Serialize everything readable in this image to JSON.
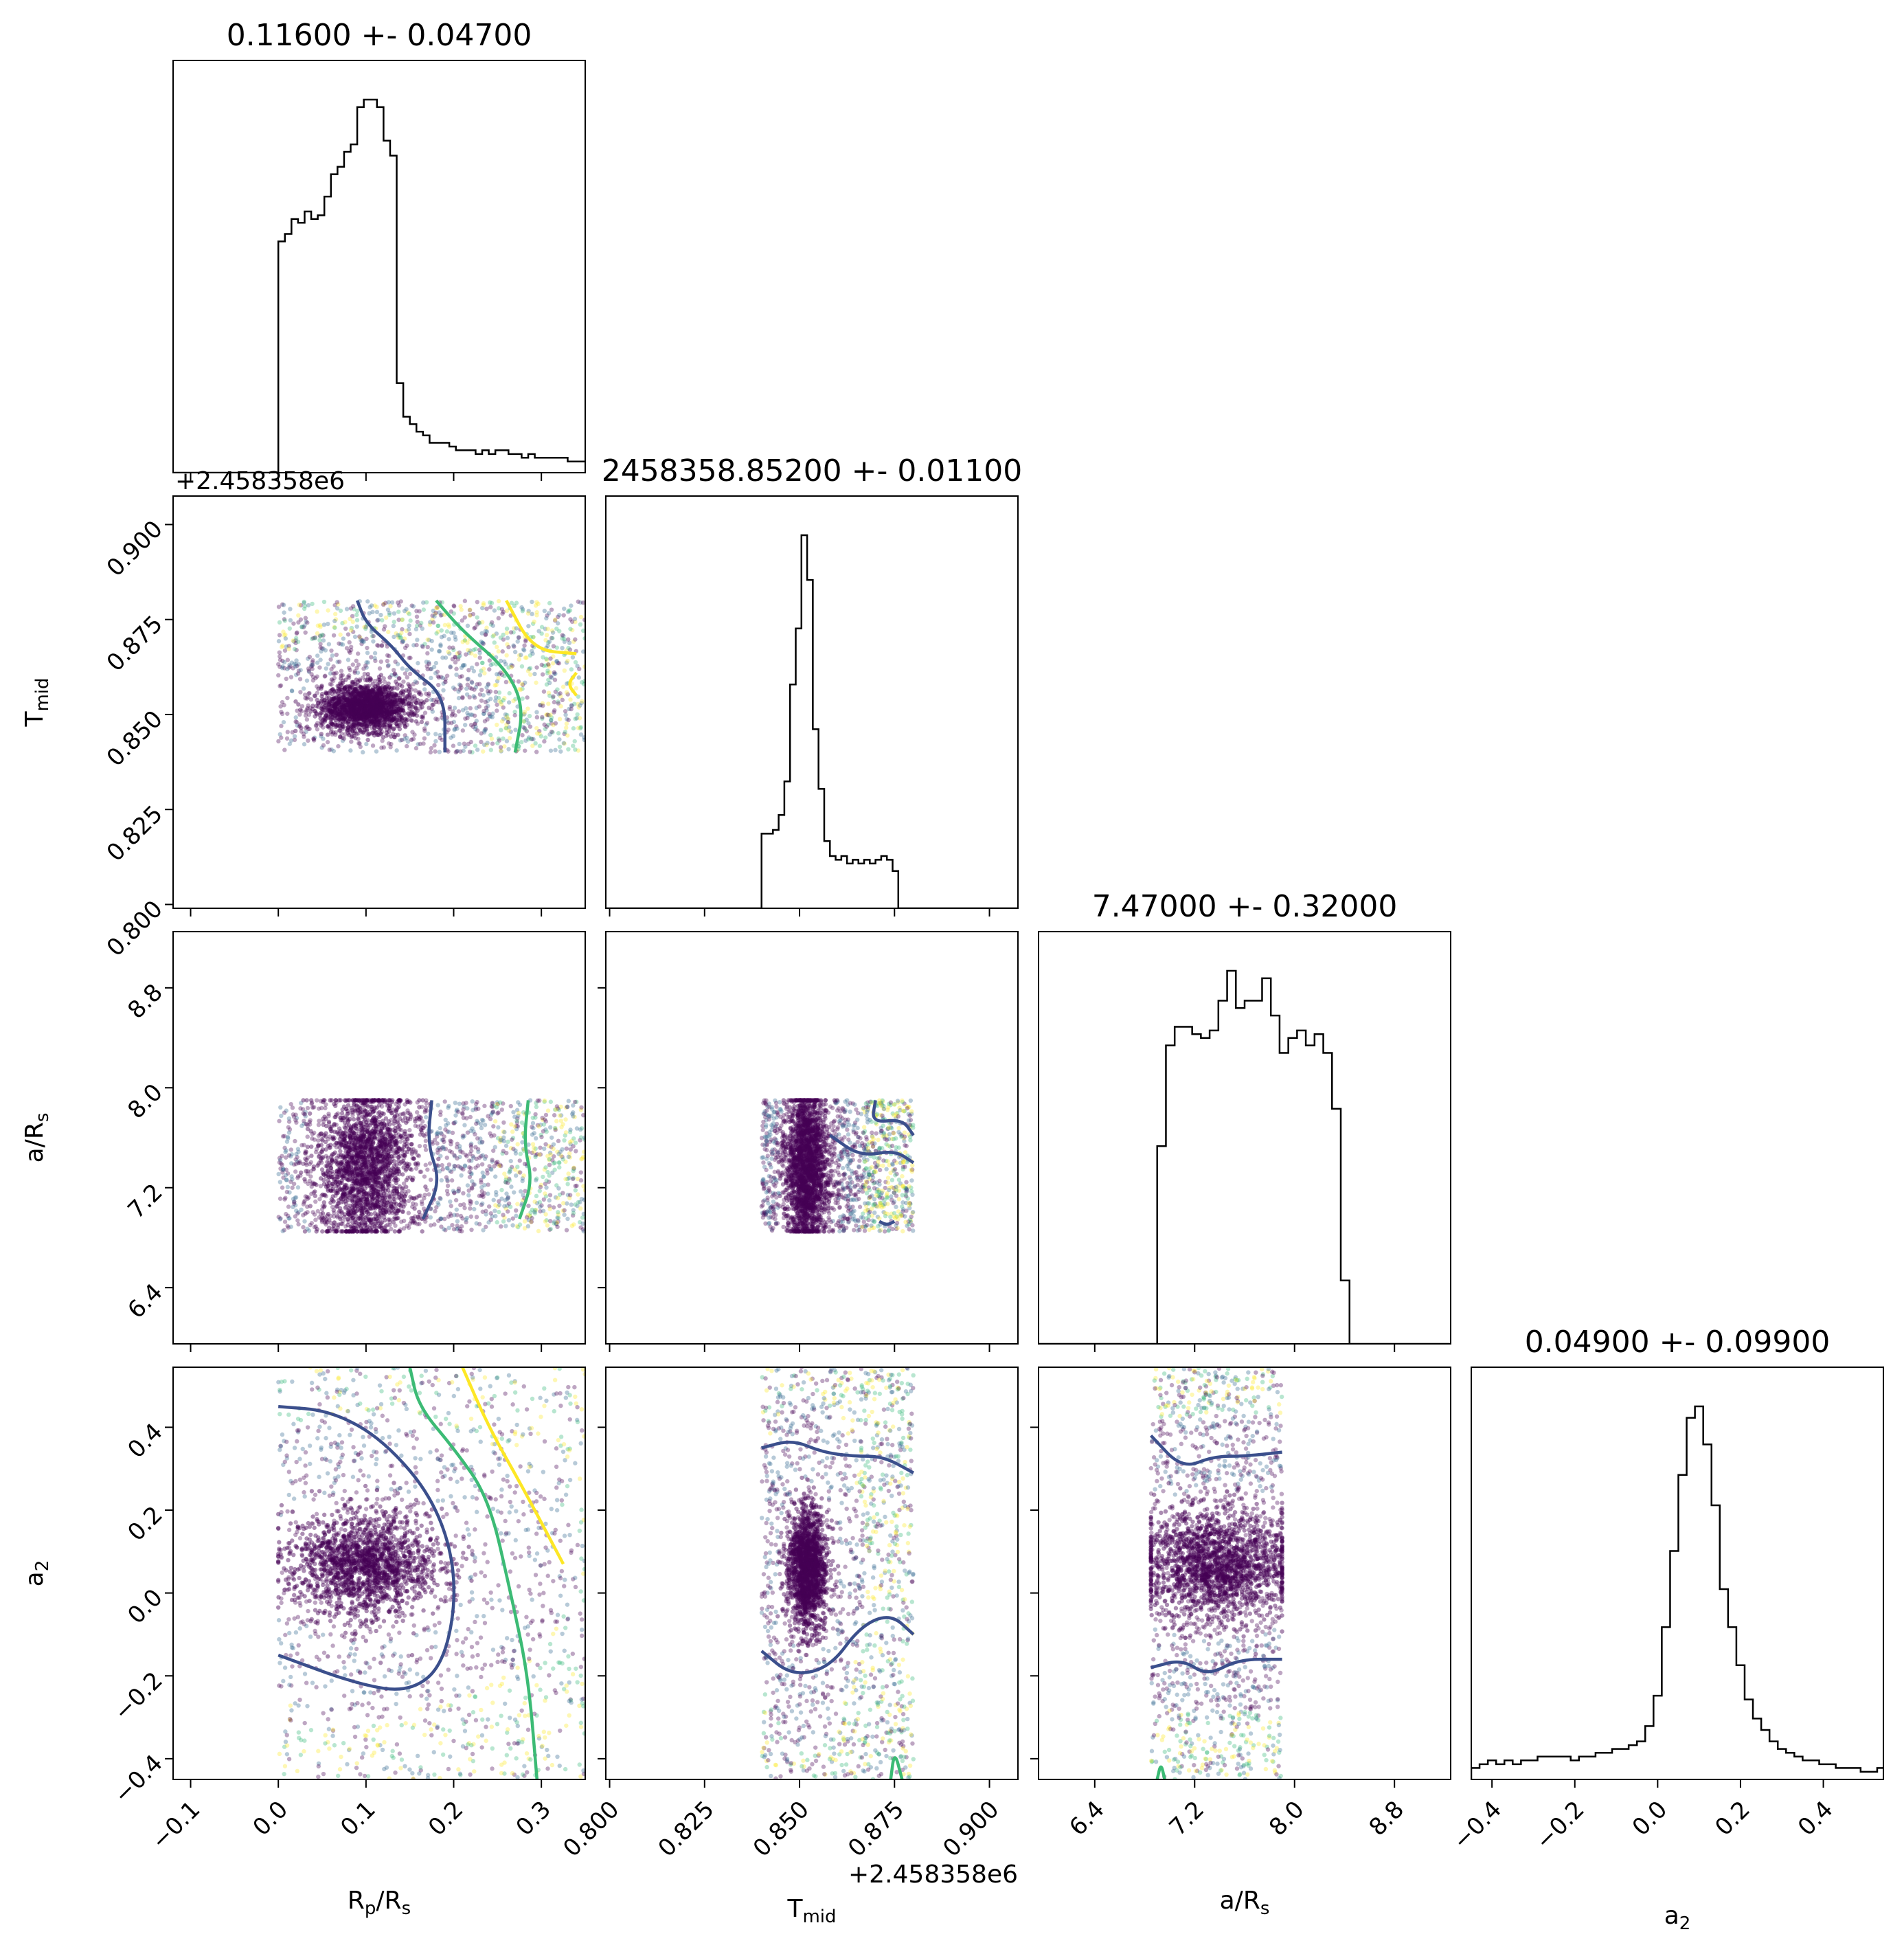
{
  "chart_data": {
    "type": "corner",
    "parameters": [
      {
        "key": "rp",
        "label": "R",
        "label_sub": "p",
        "label_suffix": "/R",
        "label_suffix_sub": "s",
        "range": [
          -0.12,
          0.35
        ],
        "ticks": [
          -0.1,
          0.0,
          0.1,
          0.2,
          0.3
        ],
        "tick_labels": [
          "−0.1",
          "0.0",
          "0.1",
          "0.2",
          "0.3"
        ],
        "title": "0.11600 +- 0.04700",
        "histogram": {
          "bin_start": 0.0,
          "bin_width": 0.0075,
          "counts": [
            62,
            64,
            68,
            67,
            70,
            68,
            69,
            74,
            80,
            82,
            86,
            88,
            98,
            100,
            100,
            98,
            89,
            85,
            24,
            15,
            13,
            11,
            10,
            8,
            8,
            8,
            7,
            6,
            6,
            6,
            5,
            6,
            5,
            6,
            6,
            5,
            5,
            4,
            5,
            4,
            4,
            4,
            4,
            4,
            3,
            3,
            3
          ]
        }
      },
      {
        "key": "tmid",
        "label": "T",
        "label_sub": "mid",
        "label_suffix": "",
        "label_suffix_sub": "",
        "range": [
          0.799,
          0.9075
        ],
        "ticks": [
          0.8,
          0.825,
          0.85,
          0.875,
          0.9
        ],
        "tick_labels": [
          "0.800",
          "0.825",
          "0.850",
          "0.875",
          "0.900"
        ],
        "offset_label": "+2.458358e6",
        "title": "2458358.85200 +- 0.01100",
        "histogram": {
          "bin_start": 0.84,
          "bin_width": 0.0015,
          "counts": [
            20,
            20,
            21,
            25,
            34,
            60,
            75,
            100,
            88,
            48,
            32,
            18,
            14,
            13,
            14,
            12,
            13,
            12,
            13,
            12,
            13,
            14,
            13,
            10,
            0
          ]
        }
      },
      {
        "key": "ars",
        "label": "a/R",
        "label_sub": "s",
        "label_suffix": "",
        "label_suffix_sub": "",
        "range": [
          5.95,
          9.25
        ],
        "ticks": [
          6.4,
          7.2,
          8.0,
          8.8
        ],
        "tick_labels": [
          "6.4",
          "7.2",
          "8.0",
          "8.8"
        ],
        "title": "7.47000 +- 0.32000",
        "histogram": {
          "bin_start": 6.9,
          "bin_width": 0.07,
          "counts": [
            53,
            80,
            85,
            85,
            83,
            82,
            84,
            92,
            100,
            90,
            92,
            92,
            98,
            88,
            78,
            82,
            84,
            80,
            83,
            78,
            63,
            17
          ]
        }
      },
      {
        "key": "a2",
        "label": "a",
        "label_sub": "2",
        "label_suffix": "",
        "label_suffix_sub": "",
        "range": [
          -0.45,
          0.545
        ],
        "ticks": [
          -0.4,
          -0.2,
          0.0,
          0.2,
          0.4
        ],
        "tick_labels": [
          "−0.4",
          "−0.2",
          "0.0",
          "0.2",
          "0.4"
        ],
        "title": "0.04900 +- 0.09900",
        "histogram": {
          "bin_start": -0.45,
          "bin_width": 0.02,
          "counts": [
            3,
            4,
            5,
            4,
            5,
            4,
            5,
            5,
            6,
            6,
            6,
            6,
            5,
            6,
            6,
            7,
            7,
            8,
            8,
            9,
            10,
            14,
            22,
            40,
            60,
            80,
            95,
            98,
            88,
            72,
            50,
            40,
            30,
            21,
            16,
            13,
            10,
            8,
            7,
            6,
            5,
            5,
            4,
            4,
            3,
            3,
            3,
            2,
            2,
            3
          ]
        }
      }
    ],
    "scatter": [
      {
        "row": 1,
        "col": 0,
        "x_range": [
          0.0,
          0.35
        ],
        "y_range": [
          0.84,
          0.88
        ],
        "dense_center": [
          0.1,
          0.852
        ],
        "dense_spread": [
          0.025,
          0.003
        ]
      },
      {
        "row": 2,
        "col": 0,
        "x_range": [
          0.0,
          0.35
        ],
        "y_range": [
          6.85,
          7.9
        ],
        "dense_center": [
          0.1,
          7.38
        ],
        "dense_spread": [
          0.025,
          0.3
        ]
      },
      {
        "row": 2,
        "col": 1,
        "x_range": [
          0.84,
          0.88
        ],
        "y_range": [
          6.85,
          7.9
        ],
        "dense_center": [
          0.852,
          7.38
        ],
        "dense_spread": [
          0.0025,
          0.3
        ]
      },
      {
        "row": 3,
        "col": 0,
        "x_range": [
          0.0,
          0.35
        ],
        "y_range": [
          -0.45,
          0.545
        ],
        "dense_center": [
          0.1,
          0.07
        ],
        "dense_spread": [
          0.04,
          0.06
        ]
      },
      {
        "row": 3,
        "col": 1,
        "x_range": [
          0.84,
          0.88
        ],
        "y_range": [
          -0.45,
          0.545
        ],
        "dense_center": [
          0.852,
          0.06
        ],
        "dense_spread": [
          0.0025,
          0.07
        ]
      },
      {
        "row": 3,
        "col": 2,
        "x_range": [
          6.85,
          7.9
        ],
        "y_range": [
          -0.45,
          0.545
        ],
        "dense_center": [
          7.38,
          0.07
        ],
        "dense_spread": [
          0.3,
          0.06
        ]
      }
    ],
    "contour_colors": [
      "#3b4f8c",
      "#3cbb75",
      "#fde725"
    ],
    "point_colors": [
      "#440154",
      "#31688e",
      "#35b779",
      "#fde725"
    ],
    "contours": [
      {
        "row": 1,
        "col": 0,
        "lines": [
          {
            "level": 0,
            "points": [
              [
                0.09,
                0.88
              ],
              [
                0.1,
                0.874
              ],
              [
                0.13,
                0.868
              ],
              [
                0.15,
                0.862
              ],
              [
                0.19,
                0.855
              ],
              [
                0.19,
                0.84
              ]
            ]
          },
          {
            "level": 1,
            "points": [
              [
                0.18,
                0.88
              ],
              [
                0.21,
                0.872
              ],
              [
                0.26,
                0.862
              ],
              [
                0.28,
                0.852
              ],
              [
                0.27,
                0.84
              ]
            ]
          },
          {
            "level": 2,
            "points": [
              [
                0.26,
                0.88
              ],
              [
                0.29,
                0.867
              ],
              [
                0.34,
                0.866
              ]
            ]
          },
          {
            "level": 2,
            "points": [
              [
                0.34,
                0.855
              ],
              [
                0.33,
                0.858
              ],
              [
                0.34,
                0.861
              ]
            ]
          }
        ]
      },
      {
        "row": 2,
        "col": 0,
        "lines": [
          {
            "level": 0,
            "points": [
              [
                0.175,
                7.9
              ],
              [
                0.17,
                7.55
              ],
              [
                0.185,
                7.25
              ],
              [
                0.165,
                6.95
              ]
            ]
          },
          {
            "level": 1,
            "points": [
              [
                0.285,
                7.9
              ],
              [
                0.28,
                7.55
              ],
              [
                0.29,
                7.25
              ],
              [
                0.275,
                6.95
              ]
            ]
          }
        ]
      },
      {
        "row": 2,
        "col": 1,
        "lines": [
          {
            "level": 0,
            "points": [
              [
                0.87,
                7.9
              ],
              [
                0.869,
                7.72
              ],
              [
                0.877,
                7.75
              ],
              [
                0.88,
                7.62
              ]
            ]
          },
          {
            "level": 0,
            "points": [
              [
                0.858,
                7.62
              ],
              [
                0.866,
                7.45
              ],
              [
                0.875,
                7.5
              ],
              [
                0.88,
                7.4
              ]
            ]
          },
          {
            "level": 0,
            "points": [
              [
                0.871,
                6.93
              ],
              [
                0.873,
                6.9
              ],
              [
                0.875,
                6.93
              ]
            ]
          }
        ]
      },
      {
        "row": 3,
        "col": 0,
        "lines": [
          {
            "level": 0,
            "points": [
              [
                0.0,
                0.45
              ],
              [
                0.06,
                0.44
              ],
              [
                0.12,
                0.37
              ],
              [
                0.18,
                0.22
              ],
              [
                0.205,
                0.03
              ],
              [
                0.19,
                -0.17
              ],
              [
                0.15,
                -0.24
              ],
              [
                0.09,
                -0.22
              ],
              [
                0.0,
                -0.15
              ]
            ]
          },
          {
            "level": 1,
            "points": [
              [
                0.15,
                0.545
              ],
              [
                0.16,
                0.45
              ],
              [
                0.2,
                0.35
              ],
              [
                0.24,
                0.23
              ],
              [
                0.265,
                0.0
              ],
              [
                0.285,
                -0.2
              ],
              [
                0.295,
                -0.45
              ]
            ]
          },
          {
            "level": 2,
            "points": [
              [
                0.21,
                0.545
              ],
              [
                0.24,
                0.4
              ],
              [
                0.28,
                0.25
              ],
              [
                0.325,
                0.07
              ]
            ]
          }
        ]
      },
      {
        "row": 3,
        "col": 1,
        "lines": [
          {
            "level": 0,
            "points": [
              [
                0.84,
                0.35
              ],
              [
                0.848,
                0.37
              ],
              [
                0.856,
                0.34
              ],
              [
                0.864,
                0.33
              ],
              [
                0.872,
                0.33
              ],
              [
                0.88,
                0.29
              ]
            ]
          },
          {
            "level": 0,
            "points": [
              [
                0.84,
                -0.14
              ],
              [
                0.848,
                -0.2
              ],
              [
                0.858,
                -0.18
              ],
              [
                0.866,
                -0.08
              ],
              [
                0.874,
                -0.05
              ],
              [
                0.88,
                -0.1
              ]
            ]
          },
          {
            "level": 1,
            "points": [
              [
                0.874,
                -0.45
              ],
              [
                0.875,
                -0.38
              ],
              [
                0.877,
                -0.45
              ]
            ]
          }
        ]
      },
      {
        "row": 3,
        "col": 2,
        "lines": [
          {
            "level": 0,
            "points": [
              [
                6.85,
                0.38
              ],
              [
                7.1,
                0.3
              ],
              [
                7.35,
                0.33
              ],
              [
                7.6,
                0.33
              ],
              [
                7.9,
                0.34
              ]
            ]
          },
          {
            "level": 0,
            "points": [
              [
                6.85,
                -0.18
              ],
              [
                7.1,
                -0.16
              ],
              [
                7.3,
                -0.2
              ],
              [
                7.55,
                -0.16
              ],
              [
                7.9,
                -0.16
              ]
            ]
          },
          {
            "level": 1,
            "points": [
              [
                6.9,
                -0.45
              ],
              [
                6.93,
                -0.41
              ],
              [
                6.96,
                -0.45
              ]
            ]
          }
        ]
      }
    ]
  }
}
